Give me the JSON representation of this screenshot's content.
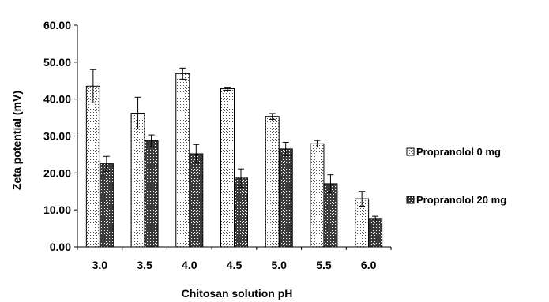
{
  "chart_data": {
    "type": "bar",
    "title": "",
    "xlabel": "Chitosan solution pH",
    "ylabel": "Zeta potential (mV)",
    "categories": [
      "3.0",
      "3.5",
      "4.0",
      "4.5",
      "5.0",
      "5.5",
      "6.0"
    ],
    "ylim": [
      0,
      60
    ],
    "yticks": [
      "0.00",
      "10.00",
      "20.00",
      "30.00",
      "40.00",
      "50.00",
      "60.00"
    ],
    "grid": false,
    "legend_position": "right",
    "series": [
      {
        "name": "Propranolol 0 mg",
        "pattern": "dotted",
        "values": [
          43.5,
          36.2,
          46.9,
          42.8,
          35.3,
          27.9,
          13.0
        ],
        "errors": [
          4.5,
          4.3,
          1.5,
          0.4,
          0.8,
          0.9,
          2.0
        ]
      },
      {
        "name": "Propranolol 20 mg",
        "pattern": "crosshatch",
        "values": [
          22.5,
          28.7,
          25.2,
          18.6,
          26.5,
          17.1,
          7.5
        ],
        "errors": [
          2.0,
          1.6,
          2.5,
          2.5,
          1.8,
          2.4,
          0.8
        ]
      }
    ]
  }
}
